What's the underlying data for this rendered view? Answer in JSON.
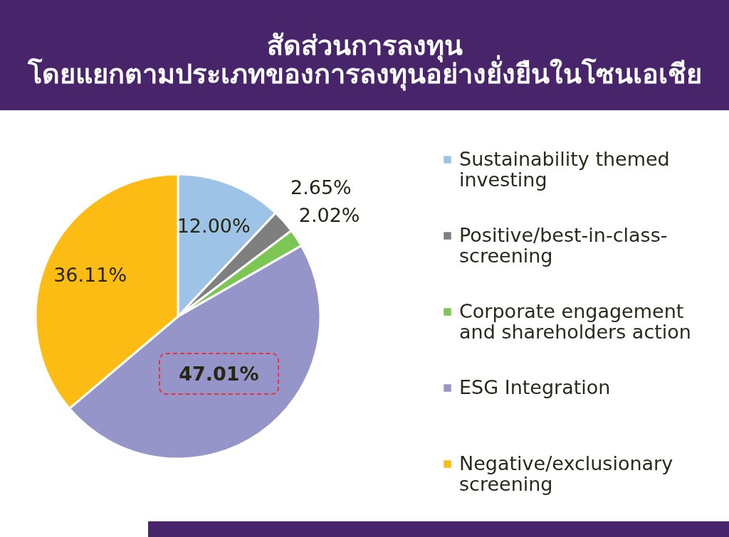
{
  "chart_data": {
    "type": "pie",
    "title": "สัดส่วนการลงทุน",
    "subtitle": "โดยแยกตามประเภทของการลงทุนอย่างยั่งยืนในโซนเอเชีย",
    "categories": [
      "Sustainability themed investing",
      "Positive/best-in-class-screening",
      "Corporate engagement and shareholders action",
      "ESG Integration",
      "Negative/exclusionary screening"
    ],
    "values": [
      12.0,
      2.65,
      2.02,
      47.01,
      36.11
    ],
    "colors": [
      "#9dc3e6",
      "#7f7f7f",
      "#7cc653",
      "#9695c9",
      "#fdbc13"
    ],
    "value_labels": [
      "12.00%",
      "2.65%",
      "2.02%",
      "47.01%",
      "36.11%"
    ],
    "legend": "right"
  }
}
